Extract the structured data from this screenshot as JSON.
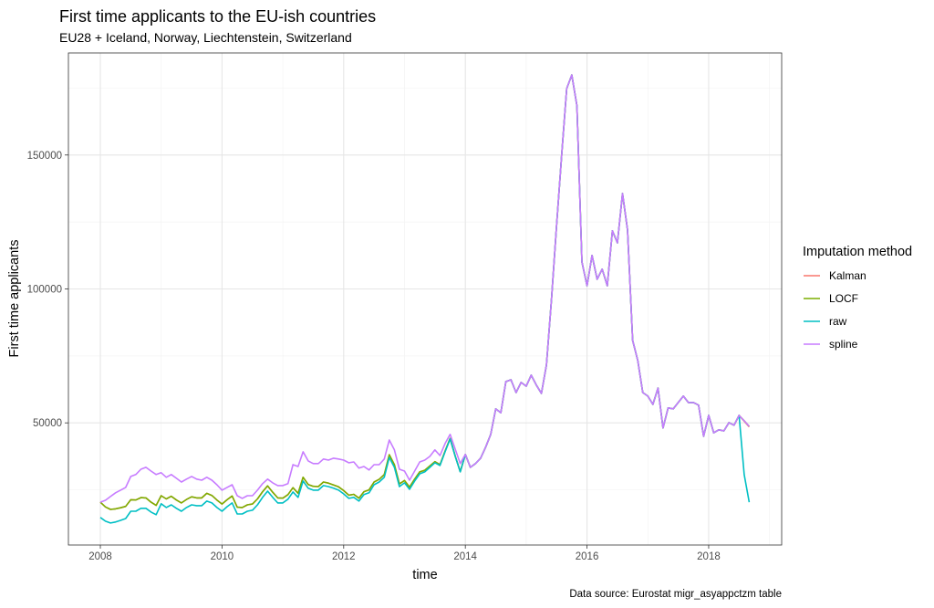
{
  "chart_data": {
    "type": "line",
    "title": "First time applicants to the EU-ish countries",
    "subtitle": "EU28 + Iceland, Norway, Liechtenstein, Switzerland",
    "xlabel": "time",
    "ylabel": "First time applicants",
    "caption": "Data source: Eurostat migr_asyappctzm table",
    "x_start": "2008-01",
    "x_frequency": "monthly",
    "xlim": [
      2007.475,
      2019.2
    ],
    "ylim": [
      4400,
      188100
    ],
    "x_ticks": [
      2008,
      2010,
      2012,
      2014,
      2016,
      2018
    ],
    "x_tick_labels": [
      "2008",
      "2010",
      "2012",
      "2014",
      "2016",
      "2018"
    ],
    "y_ticks": [
      50000,
      100000,
      150000
    ],
    "y_tick_labels": [
      "50000",
      "100000",
      "150000"
    ],
    "grid": true,
    "legend_title": "Imputation method",
    "legend_position": "right",
    "value_unit": "thousands",
    "series": [
      {
        "name": "Kalman",
        "color": "#F8766D",
        "values": [
          20.4,
          18.6,
          17.7,
          17.9,
          18.3,
          18.8,
          21.3,
          21.2,
          22.1,
          22.0,
          20.4,
          19.2,
          22.8,
          21.6,
          22.6,
          21.2,
          20.1,
          21.4,
          22.4,
          22.0,
          22.0,
          23.7,
          22.9,
          21.2,
          19.7,
          21.3,
          22.7,
          18.5,
          18.4,
          19.4,
          19.7,
          21.6,
          24.3,
          26.5,
          24.1,
          22.0,
          21.9,
          23.2,
          25.8,
          23.7,
          29.7,
          27.0,
          26.3,
          26.2,
          27.9,
          27.5,
          26.8,
          26.1,
          24.7,
          23.0,
          23.3,
          21.9,
          24.3,
          25.0,
          27.9,
          28.9,
          30.7,
          38.1,
          34.4,
          27.2,
          28.5,
          26.0,
          29.0,
          31.7,
          32.3,
          33.9,
          35.5,
          34.4,
          39.5,
          44.2,
          37.6,
          31.8,
          38.2,
          33.4,
          34.8,
          36.8,
          40.9,
          45.7,
          55.2,
          53.8,
          65.4,
          66.1,
          61.3,
          65.1,
          63.7,
          67.8,
          64.1,
          61.0,
          71.6,
          96.4,
          123.7,
          150.0,
          174.8,
          179.9,
          168.4,
          110.1,
          101.2,
          112.5,
          103.6,
          107.4,
          101.2,
          121.7,
          117.2,
          135.6,
          122.0,
          80.8,
          73.3,
          61.3,
          60.0,
          56.9,
          63.0,
          48.1,
          55.6,
          55.2,
          57.6,
          60.0,
          57.6,
          57.6,
          56.6,
          45.0,
          52.8,
          46.3,
          47.4,
          47.0,
          50.1,
          49.1,
          52.8,
          50.6,
          48.5
        ]
      },
      {
        "name": "LOCF",
        "color": "#7CAE00",
        "values": [
          20.4,
          18.6,
          17.7,
          17.9,
          18.3,
          18.8,
          21.3,
          21.2,
          22.1,
          22.0,
          20.4,
          19.2,
          22.8,
          21.6,
          22.6,
          21.2,
          20.1,
          21.4,
          22.4,
          22.0,
          22.0,
          23.7,
          22.9,
          21.2,
          19.7,
          21.3,
          22.7,
          18.5,
          18.4,
          19.4,
          19.7,
          21.6,
          24.3,
          26.5,
          24.1,
          22.0,
          21.9,
          23.2,
          25.8,
          23.7,
          29.7,
          27.0,
          26.3,
          26.2,
          27.9,
          27.5,
          26.8,
          26.1,
          24.7,
          23.0,
          23.3,
          21.9,
          24.3,
          25.0,
          27.9,
          28.9,
          30.7,
          38.1,
          34.4,
          27.2,
          28.5,
          26.0,
          29.0,
          31.7,
          32.3,
          33.9,
          35.5,
          34.4,
          39.5,
          44.2,
          37.6,
          31.8,
          38.2,
          33.4,
          34.8,
          36.8,
          40.9,
          45.7,
          55.2,
          53.8,
          65.4,
          66.1,
          61.3,
          65.1,
          63.7,
          67.8,
          64.1,
          61.0,
          71.6,
          96.4,
          123.7,
          150.0,
          174.8,
          179.9,
          168.4,
          110.1,
          101.2,
          112.5,
          103.6,
          107.4,
          101.2,
          121.7,
          117.2,
          135.6,
          122.0,
          80.8,
          73.3,
          61.3,
          60.0,
          56.9,
          63.0,
          48.1,
          55.6,
          55.2,
          57.6,
          60.0,
          57.6,
          57.6,
          56.6,
          45.0,
          52.8,
          46.3,
          47.4,
          47.0,
          50.1,
          49.1,
          52.8,
          50.8,
          48.7
        ]
      },
      {
        "name": "raw",
        "color": "#00BFC4",
        "values": [
          14.7,
          13.3,
          12.6,
          13.0,
          13.6,
          14.3,
          17.0,
          17.0,
          18.1,
          18.1,
          16.7,
          15.7,
          19.8,
          18.4,
          19.4,
          18.1,
          17.0,
          18.4,
          19.4,
          19.1,
          19.1,
          20.8,
          20.1,
          18.4,
          17.0,
          18.7,
          20.1,
          16.0,
          16.0,
          17.0,
          17.4,
          19.4,
          22.2,
          24.5,
          22.2,
          20.1,
          20.1,
          21.5,
          24.2,
          22.2,
          28.3,
          25.6,
          24.9,
          24.9,
          26.6,
          26.2,
          25.6,
          24.9,
          23.5,
          21.8,
          22.2,
          20.8,
          23.2,
          23.9,
          26.9,
          27.9,
          29.7,
          37.1,
          33.4,
          26.2,
          27.6,
          25.2,
          28.3,
          31.0,
          31.7,
          33.4,
          35.1,
          34.1,
          39.2,
          44.0,
          37.5,
          31.7,
          38.2,
          33.4,
          34.8,
          36.8,
          40.9,
          45.7,
          55.2,
          53.8,
          65.4,
          66.1,
          61.3,
          65.1,
          63.7,
          67.8,
          64.1,
          61.0,
          71.6,
          96.4,
          123.7,
          150.0,
          174.8,
          179.9,
          168.4,
          110.1,
          101.2,
          112.5,
          103.6,
          107.4,
          101.2,
          121.7,
          117.2,
          135.6,
          122.0,
          80.8,
          73.3,
          61.3,
          60.0,
          56.9,
          63.0,
          48.1,
          55.6,
          55.2,
          57.6,
          60.0,
          57.6,
          57.6,
          56.6,
          45.0,
          52.8,
          46.3,
          47.4,
          47.0,
          50.1,
          49.1,
          52.8,
          30.7,
          20.4
        ]
      },
      {
        "name": "spline",
        "color": "#C77CFF",
        "values": [
          20.4,
          21.1,
          22.5,
          23.9,
          24.9,
          25.9,
          30.0,
          30.7,
          32.7,
          33.4,
          32.0,
          30.7,
          31.4,
          29.7,
          30.7,
          29.3,
          27.9,
          29.0,
          30.0,
          29.0,
          28.6,
          29.7,
          28.6,
          26.9,
          24.9,
          25.9,
          26.9,
          22.8,
          21.8,
          22.8,
          22.8,
          24.9,
          27.3,
          29.0,
          27.6,
          26.6,
          26.6,
          27.3,
          34.4,
          33.7,
          39.2,
          35.8,
          34.8,
          34.8,
          36.5,
          36.1,
          36.8,
          36.5,
          36.1,
          35.1,
          35.4,
          33.1,
          33.7,
          32.4,
          34.4,
          34.4,
          36.5,
          43.6,
          39.9,
          32.7,
          32.0,
          28.6,
          32.0,
          35.4,
          36.1,
          37.5,
          39.9,
          37.8,
          42.3,
          45.7,
          40.2,
          34.8,
          38.2,
          33.4,
          34.8,
          36.8,
          40.9,
          45.7,
          55.2,
          53.8,
          65.4,
          66.1,
          61.3,
          65.1,
          63.7,
          67.8,
          64.1,
          61.0,
          71.6,
          96.4,
          123.7,
          150.0,
          174.8,
          179.9,
          168.4,
          110.1,
          101.2,
          112.5,
          103.6,
          107.4,
          101.2,
          121.7,
          117.2,
          135.6,
          122.0,
          80.8,
          73.3,
          61.3,
          60.0,
          56.9,
          63.0,
          48.1,
          55.6,
          55.2,
          57.6,
          60.0,
          57.6,
          57.6,
          56.6,
          45.0,
          52.8,
          46.3,
          47.4,
          47.0,
          50.1,
          49.1,
          52.8,
          50.8,
          48.7
        ]
      }
    ]
  }
}
